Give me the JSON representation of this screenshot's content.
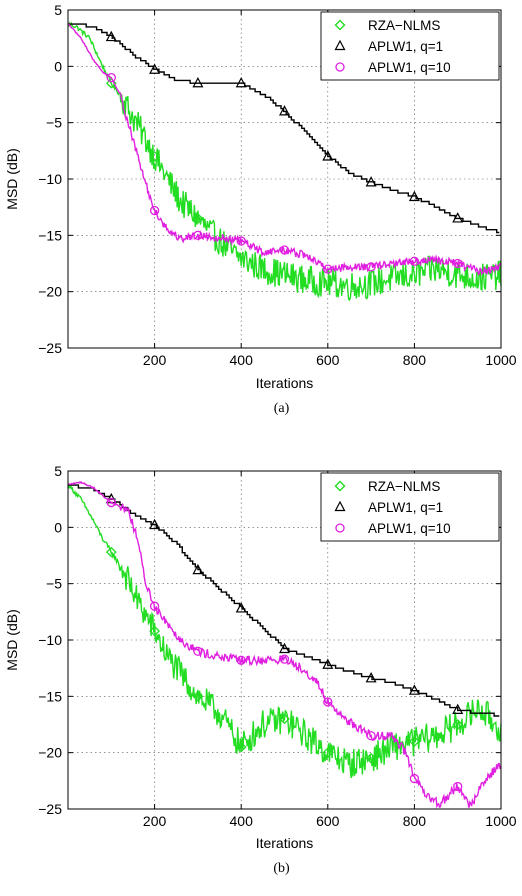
{
  "chart_data": [
    {
      "type": "line",
      "caption": "(a)",
      "xlabel": "Iterations",
      "ylabel": "MSD (dB)",
      "xlim": [
        0,
        1000
      ],
      "ylim": [
        -25,
        5
      ],
      "xticks": [
        200,
        400,
        600,
        800,
        1000
      ],
      "yticks": [
        5,
        0,
        -5,
        -10,
        -15,
        -20,
        -25
      ],
      "grid": true,
      "legend_position": "top-right",
      "series": [
        {
          "name": "RZA−NLMS",
          "color": "#22dd22",
          "marker": "diamond",
          "noise": 1.3,
          "markers_x": [
            100,
            200,
            300
          ],
          "x": [
            0,
            20,
            50,
            80,
            100,
            120,
            150,
            180,
            200,
            230,
            260,
            300,
            330,
            360,
            380,
            400,
            450,
            500,
            550,
            600,
            650,
            700,
            750,
            800,
            850,
            900,
            950,
            1000
          ],
          "y": [
            3.8,
            3.5,
            2.5,
            0.0,
            -1.5,
            -2.5,
            -4.5,
            -6.5,
            -8.0,
            -10.0,
            -12.0,
            -13.5,
            -14.8,
            -15.8,
            -16.6,
            -17.0,
            -18.0,
            -18.5,
            -19.0,
            -19.2,
            -19.5,
            -19.3,
            -18.8,
            -18.5,
            -18.0,
            -18.5,
            -18.8,
            -18.5
          ]
        },
        {
          "name": "APLW1, q=1",
          "color": "#000000",
          "marker": "triangle",
          "noise": 0,
          "markers_x": [
            100,
            200,
            300,
            400,
            500,
            600,
            700,
            800,
            900
          ],
          "x": [
            0,
            50,
            100,
            150,
            200,
            250,
            300,
            350,
            400,
            450,
            500,
            550,
            600,
            650,
            700,
            750,
            800,
            850,
            900,
            950,
            1000
          ],
          "y": [
            3.7,
            3.6,
            2.6,
            1.0,
            -0.3,
            -1.2,
            -1.5,
            -1.5,
            -1.5,
            -2.5,
            -4.0,
            -6.0,
            -8.0,
            -9.5,
            -10.3,
            -11.0,
            -11.6,
            -12.5,
            -13.5,
            -14.2,
            -14.8
          ]
        },
        {
          "name": "APLW1, q=10",
          "color": "#e020e0",
          "marker": "circle",
          "noise": 0.35,
          "markers_x": [
            100,
            200,
            300,
            400,
            500,
            600,
            700,
            800,
            900
          ],
          "x": [
            0,
            30,
            60,
            80,
            100,
            120,
            150,
            180,
            200,
            230,
            260,
            300,
            350,
            400,
            450,
            500,
            550,
            600,
            650,
            700,
            750,
            800,
            850,
            900,
            950,
            1000
          ],
          "y": [
            3.8,
            2.5,
            0.5,
            -0.5,
            -1.0,
            -2.5,
            -6.5,
            -10.5,
            -12.8,
            -14.5,
            -15.3,
            -15.0,
            -15.2,
            -15.5,
            -16.5,
            -16.3,
            -16.8,
            -18.0,
            -17.8,
            -17.8,
            -17.5,
            -17.3,
            -17.2,
            -17.5,
            -18.2,
            -17.8
          ]
        }
      ]
    },
    {
      "type": "line",
      "caption": "(b)",
      "xlabel": "Iterations",
      "ylabel": "MSD (dB)",
      "xlim": [
        0,
        1000
      ],
      "ylim": [
        -25,
        5
      ],
      "xticks": [
        200,
        400,
        600,
        800,
        1000
      ],
      "yticks": [
        5,
        0,
        -5,
        -10,
        -15,
        -20,
        -25
      ],
      "grid": true,
      "legend_position": "top-right",
      "series": [
        {
          "name": "RZA−NLMS",
          "color": "#22dd22",
          "marker": "diamond",
          "noise": 1.3,
          "markers_x": [
            100,
            200,
            300,
            400,
            500,
            600,
            700,
            800,
            900
          ],
          "x": [
            0,
            30,
            60,
            80,
            100,
            130,
            160,
            200,
            230,
            260,
            300,
            350,
            400,
            450,
            500,
            550,
            600,
            650,
            700,
            750,
            800,
            850,
            900,
            950,
            1000
          ],
          "y": [
            3.8,
            2.5,
            0.5,
            -1.0,
            -2.2,
            -4.0,
            -6.5,
            -9.2,
            -11.5,
            -13.0,
            -15.0,
            -16.5,
            -19.5,
            -17.5,
            -17.0,
            -18.5,
            -20.0,
            -21.0,
            -20.5,
            -19.5,
            -19.0,
            -18.5,
            -17.5,
            -16.0,
            -18.0
          ]
        },
        {
          "name": "APLW1, q=1",
          "color": "#000000",
          "marker": "triangle",
          "noise": 0,
          "markers_x": [
            100,
            200,
            300,
            400,
            500,
            600,
            700,
            800,
            900
          ],
          "x": [
            0,
            50,
            100,
            150,
            200,
            250,
            300,
            350,
            400,
            450,
            500,
            550,
            600,
            650,
            700,
            750,
            800,
            850,
            900,
            950,
            1000
          ],
          "y": [
            3.7,
            3.5,
            2.5,
            1.2,
            0.2,
            -1.5,
            -3.8,
            -5.5,
            -7.2,
            -9.0,
            -10.8,
            -11.5,
            -12.2,
            -12.8,
            -13.4,
            -13.8,
            -14.5,
            -15.3,
            -16.2,
            -16.5,
            -16.7
          ]
        },
        {
          "name": "APLW1, q=10",
          "color": "#e020e0",
          "marker": "circle",
          "noise": 0.4,
          "markers_x": [
            100,
            200,
            300,
            400,
            500,
            600,
            700,
            800,
            900
          ],
          "x": [
            0,
            30,
            60,
            90,
            100,
            140,
            160,
            180,
            200,
            230,
            260,
            300,
            350,
            400,
            450,
            500,
            540,
            570,
            600,
            640,
            680,
            700,
            750,
            780,
            800,
            830,
            860,
            900,
            930,
            960,
            1000
          ],
          "y": [
            3.8,
            4.0,
            3.5,
            2.5,
            2.2,
            1.5,
            -1.0,
            -5.0,
            -7.0,
            -8.5,
            -10.0,
            -11.0,
            -11.5,
            -11.8,
            -11.8,
            -11.7,
            -12.5,
            -13.5,
            -15.5,
            -17.0,
            -18.0,
            -18.5,
            -18.5,
            -20.0,
            -22.3,
            -24.0,
            -24.5,
            -23.0,
            -24.8,
            -22.5,
            -21.0
          ]
        }
      ]
    }
  ]
}
